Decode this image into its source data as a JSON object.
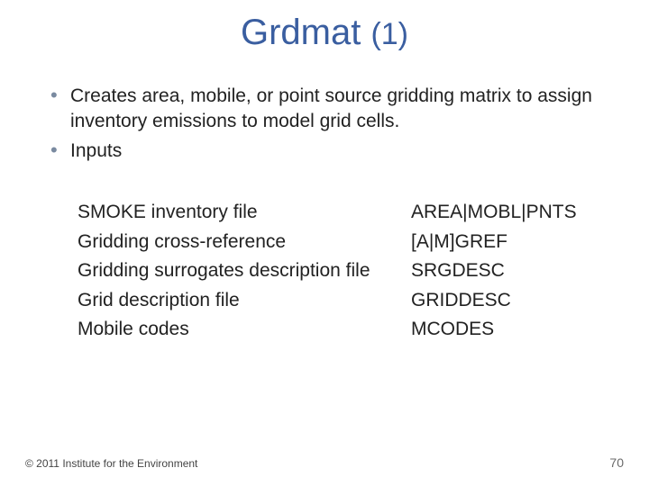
{
  "title": {
    "main": "Grdmat ",
    "paren": "(1)"
  },
  "bullets": [
    "Creates area, mobile, or point source gridding matrix to assign inventory emissions to model grid cells.",
    "Inputs"
  ],
  "table": {
    "rows": [
      {
        "left": "SMOKE inventory file",
        "right": "AREA|MOBL|PNTS"
      },
      {
        "left": "Gridding cross-reference",
        "right": "[A|M]GREF"
      },
      {
        "left": "Gridding surrogates description file",
        "right": "SRGDESC"
      },
      {
        "left": "Grid description file",
        "right": "GRIDDESC"
      },
      {
        "left": "Mobile codes",
        "right": "MCODES"
      }
    ]
  },
  "footer": {
    "copyright": "© 2011 Institute for the Environment",
    "page": "70"
  },
  "colors": {
    "title": "#3a5ea0",
    "bullet_marker": "#7a8aa0",
    "text": "#222222",
    "background": "#ffffff"
  }
}
